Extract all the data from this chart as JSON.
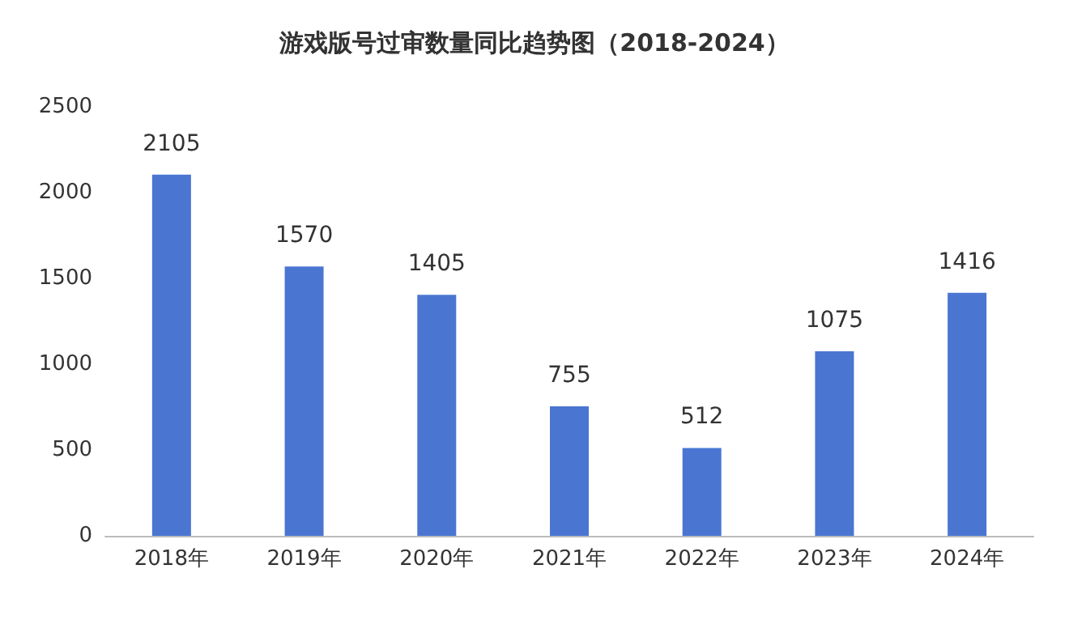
{
  "chart_data": {
    "type": "bar",
    "title": "游戏版号过审数量同比趋势图（2018-2024）",
    "categories": [
      "2018年",
      "2019年",
      "2020年",
      "2021年",
      "2022年",
      "2023年",
      "2024年"
    ],
    "values": [
      2105,
      1570,
      1405,
      755,
      512,
      1075,
      1416
    ],
    "color": "#4a76d2",
    "ylim": [
      0,
      2500
    ],
    "yticks": [
      0,
      500,
      1000,
      1500,
      2000,
      2500
    ],
    "grid": false,
    "data_labels": true
  }
}
